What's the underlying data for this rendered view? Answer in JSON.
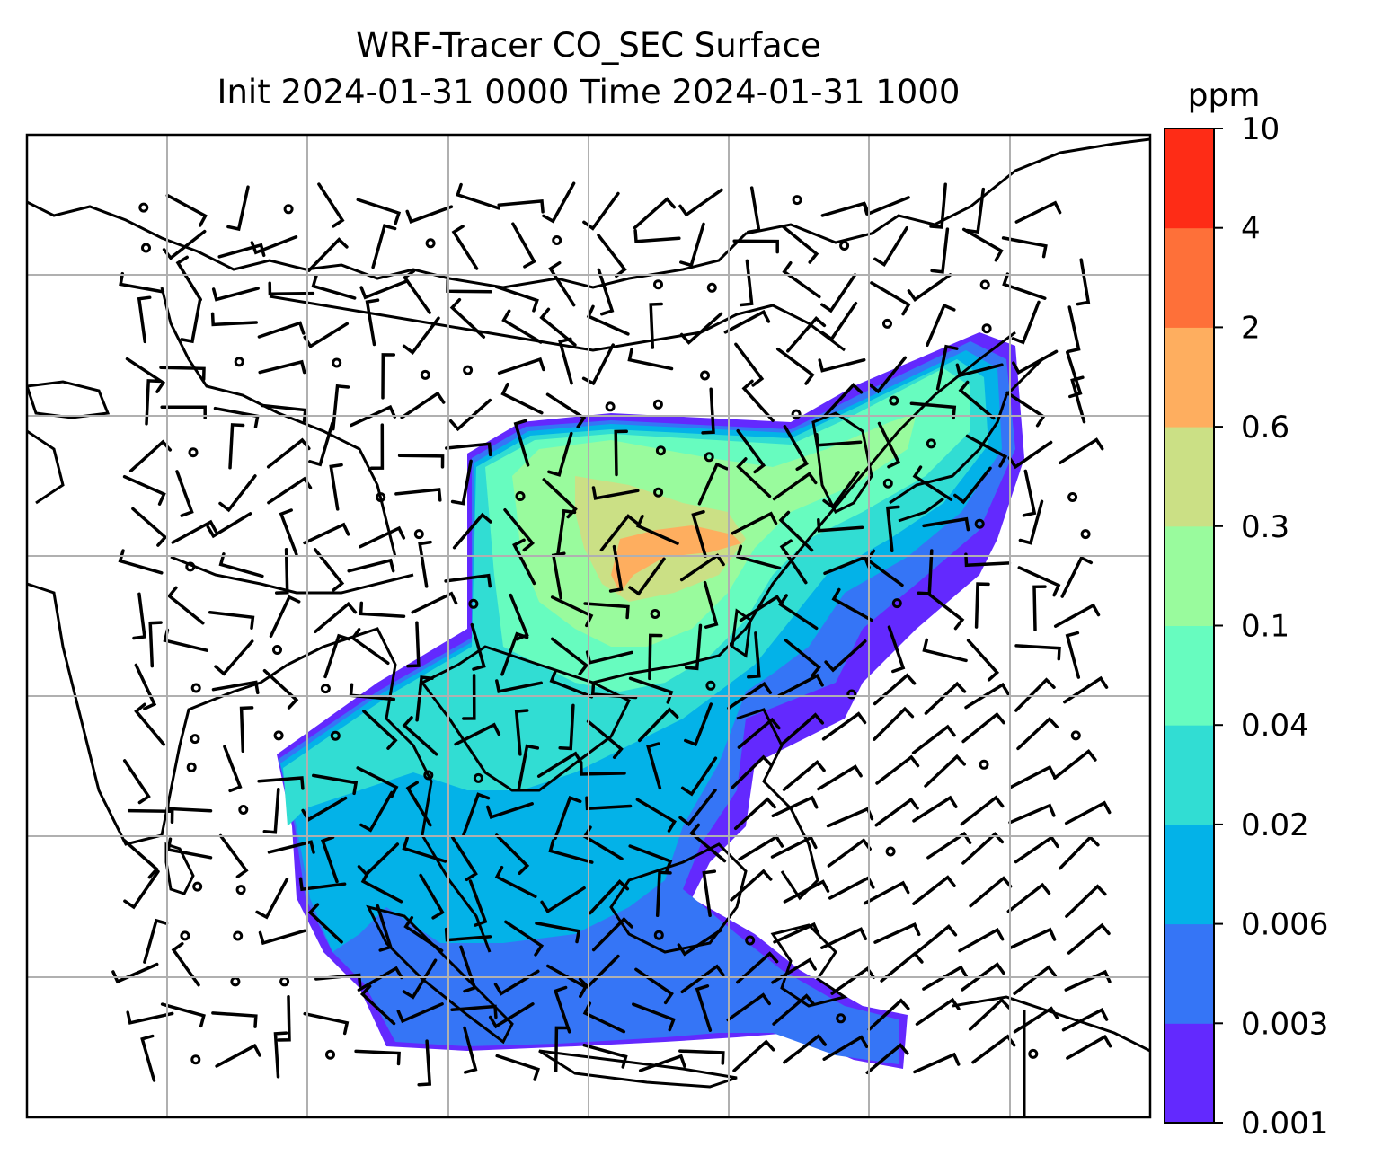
{
  "title": {
    "line1": "WRF-Tracer CO_SEC Surface",
    "line2": "Init 2024-01-31 0000 Time 2024-01-31 1000"
  },
  "colorbar": {
    "unit": "ppm",
    "levels": [
      "0.001",
      "0.003",
      "0.006",
      "0.02",
      "0.04",
      "0.1",
      "0.3",
      "0.6",
      "2",
      "4",
      "10"
    ],
    "colors": [
      "#6329fe",
      "#3575f6",
      "#03b2e8",
      "#31ddd3",
      "#67fcbf",
      "#99fb9d",
      "#cbe085",
      "#feae5f",
      "#fe7039",
      "#fe2c16"
    ]
  },
  "map": {
    "background": "#ffffff",
    "gridline_color": "#b0b0b0",
    "coastline_color": "#000000",
    "barb_color": "#000000"
  }
}
